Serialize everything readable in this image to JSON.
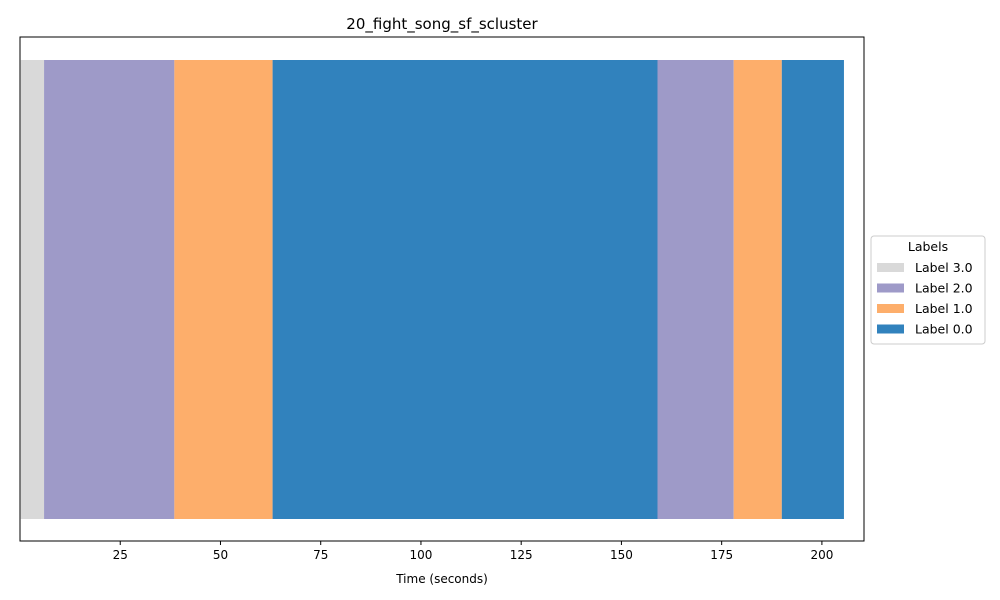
{
  "chart_data": {
    "type": "bar",
    "title": "20_fight_song_sf_scluster",
    "xlabel": "Time (seconds)",
    "ylabel": "",
    "xlim": [
      0,
      210.5
    ],
    "xticks": [
      25,
      50,
      75,
      100,
      125,
      150,
      175,
      200
    ],
    "grid": false,
    "legend": {
      "title": "Labels",
      "placement": "center-right-outside",
      "entries": [
        {
          "label": "Label 3.0",
          "color": "#d9d9d9"
        },
        {
          "label": "Label 2.0",
          "color": "#9e9ac8"
        },
        {
          "label": "Label 1.0",
          "color": "#fdae6b"
        },
        {
          "label": "Label 0.0",
          "color": "#3182bd"
        }
      ]
    },
    "segments": [
      {
        "label": "Label 3.0",
        "start": 0.2,
        "end": 6.0
      },
      {
        "label": "Label 2.0",
        "start": 6.0,
        "end": 38.5
      },
      {
        "label": "Label 1.0",
        "start": 38.5,
        "end": 63.0
      },
      {
        "label": "Label 0.0",
        "start": 63.0,
        "end": 159.0
      },
      {
        "label": "Label 2.0",
        "start": 159.0,
        "end": 178.0
      },
      {
        "label": "Label 1.0",
        "start": 178.0,
        "end": 190.0
      },
      {
        "label": "Label 0.0",
        "start": 190.0,
        "end": 205.5
      }
    ]
  }
}
